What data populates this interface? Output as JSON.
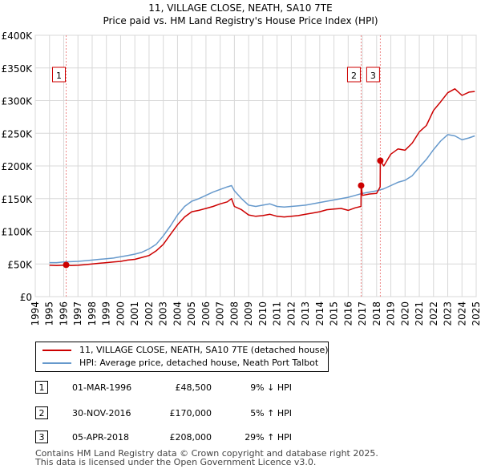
{
  "chart_data": {
    "type": "line",
    "title": "11, VILLAGE CLOSE, NEATH, SA10 7TE",
    "subtitle": "Price paid vs. HM Land Registry's House Price Index (HPI)",
    "xlabel": "",
    "ylabel": "",
    "xlim": [
      1994,
      2025
    ],
    "ylim": [
      0,
      400000
    ],
    "x_ticks": [
      "1994",
      "1995",
      "1996",
      "1997",
      "1998",
      "1999",
      "2000",
      "2001",
      "2002",
      "2003",
      "2004",
      "2005",
      "2006",
      "2007",
      "2008",
      "2009",
      "2010",
      "2011",
      "2012",
      "2013",
      "2014",
      "2015",
      "2016",
      "2017",
      "2018",
      "2019",
      "2020",
      "2021",
      "2022",
      "2023",
      "2024",
      "2025"
    ],
    "y_ticks": [
      {
        "value": 0,
        "label": "£0"
      },
      {
        "value": 50000,
        "label": "£50K"
      },
      {
        "value": 100000,
        "label": "£100K"
      },
      {
        "value": 150000,
        "label": "£150K"
      },
      {
        "value": 200000,
        "label": "£200K"
      },
      {
        "value": 250000,
        "label": "£250K"
      },
      {
        "value": 300000,
        "label": "£300K"
      },
      {
        "value": 350000,
        "label": "£350K"
      },
      {
        "value": 400000,
        "label": "£400K"
      }
    ],
    "series": [
      {
        "name": "11, VILLAGE CLOSE, NEATH, SA10 7TE (detached house)",
        "color": "#cc0000",
        "x": [
          1995.0,
          1995.5,
          1996.0,
          1996.17,
          1996.5,
          1997.0,
          1997.5,
          1998.0,
          1998.5,
          1999.0,
          1999.5,
          2000.0,
          2000.5,
          2001.0,
          2001.5,
          2002.0,
          2002.5,
          2003.0,
          2003.5,
          2004.0,
          2004.5,
          2005.0,
          2005.5,
          2006.0,
          2006.5,
          2007.0,
          2007.5,
          2007.8,
          2008.0,
          2008.5,
          2009.0,
          2009.5,
          2010.0,
          2010.5,
          2011.0,
          2011.5,
          2012.0,
          2012.5,
          2013.0,
          2013.5,
          2014.0,
          2014.5,
          2015.0,
          2015.5,
          2016.0,
          2016.5,
          2016.9,
          2016.91,
          2017.0,
          2017.5,
          2018.0,
          2018.25,
          2018.26,
          2018.5,
          2019.0,
          2019.5,
          2020.0,
          2020.5,
          2021.0,
          2021.5,
          2022.0,
          2022.5,
          2023.0,
          2023.5,
          2024.0,
          2024.5,
          2024.9
        ],
        "y": [
          48000,
          47500,
          48000,
          48500,
          47500,
          48000,
          49000,
          50000,
          51000,
          52000,
          53000,
          54000,
          56000,
          57000,
          60000,
          63000,
          70000,
          80000,
          95000,
          110000,
          122000,
          130000,
          132000,
          135000,
          138000,
          142000,
          145000,
          150000,
          138000,
          133000,
          125000,
          123000,
          124000,
          126000,
          123000,
          122000,
          123000,
          124000,
          126000,
          128000,
          130000,
          133000,
          134000,
          135000,
          132000,
          136000,
          138000,
          170000,
          155000,
          157000,
          158000,
          168000,
          208000,
          200000,
          218000,
          226000,
          224000,
          235000,
          252000,
          262000,
          285000,
          298000,
          312000,
          318000,
          308000,
          313000,
          314000
        ]
      },
      {
        "name": "HPI: Average price, detached house, Neath Port Talbot",
        "color": "#6699cc",
        "x": [
          1995.0,
          1995.5,
          1996.0,
          1996.5,
          1997.0,
          1997.5,
          1998.0,
          1998.5,
          1999.0,
          1999.5,
          2000.0,
          2000.5,
          2001.0,
          2001.5,
          2002.0,
          2002.5,
          2003.0,
          2003.5,
          2004.0,
          2004.5,
          2005.0,
          2005.5,
          2006.0,
          2006.5,
          2007.0,
          2007.5,
          2007.8,
          2008.0,
          2008.5,
          2009.0,
          2009.5,
          2010.0,
          2010.5,
          2011.0,
          2011.5,
          2012.0,
          2012.5,
          2013.0,
          2013.5,
          2014.0,
          2014.5,
          2015.0,
          2015.5,
          2016.0,
          2016.5,
          2017.0,
          2017.5,
          2018.0,
          2018.5,
          2019.0,
          2019.5,
          2020.0,
          2020.5,
          2021.0,
          2021.5,
          2022.0,
          2022.5,
          2023.0,
          2023.5,
          2024.0,
          2024.5,
          2024.9
        ],
        "y": [
          52000,
          52000,
          53000,
          53500,
          54000,
          55000,
          56000,
          57000,
          58000,
          59000,
          61000,
          63000,
          65000,
          68000,
          73000,
          80000,
          93000,
          108000,
          125000,
          138000,
          146000,
          150000,
          155000,
          160000,
          164000,
          168000,
          170000,
          162000,
          150000,
          140000,
          138000,
          140000,
          142000,
          138000,
          137000,
          138000,
          139000,
          140000,
          142000,
          144000,
          146000,
          148000,
          150000,
          152000,
          155000,
          158000,
          160000,
          162000,
          165000,
          170000,
          175000,
          178000,
          185000,
          198000,
          210000,
          225000,
          238000,
          248000,
          246000,
          240000,
          243000,
          246000
        ]
      }
    ],
    "sales": [
      {
        "label": "1",
        "x": 1996.17,
        "price": 48500
      },
      {
        "label": "2",
        "x": 2016.91,
        "price": 170000
      },
      {
        "label": "3",
        "x": 2018.26,
        "price": 208000
      }
    ]
  },
  "legend": [
    {
      "label": "11, VILLAGE CLOSE, NEATH, SA10 7TE (detached house)",
      "color": "#cc0000"
    },
    {
      "label": "HPI: Average price, detached house, Neath Port Talbot",
      "color": "#6699cc"
    }
  ],
  "transactions": [
    {
      "num": "1",
      "date": "01-MAR-1996",
      "price": "£48,500",
      "hpi": "9% ↓ HPI"
    },
    {
      "num": "2",
      "date": "30-NOV-2016",
      "price": "£170,000",
      "hpi": "5% ↑ HPI"
    },
    {
      "num": "3",
      "date": "05-APR-2018",
      "price": "£208,000",
      "hpi": "29% ↑ HPI"
    }
  ],
  "footer": {
    "line1": "Contains HM Land Registry data © Crown copyright and database right 2025.",
    "line2": "This data is licensed under the Open Government Licence v3.0."
  }
}
